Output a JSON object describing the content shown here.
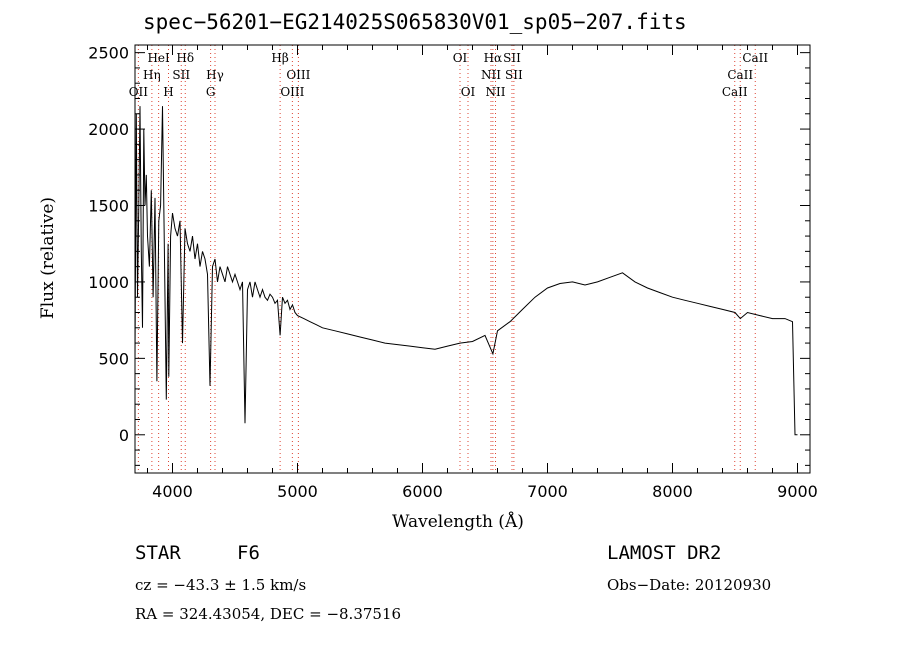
{
  "chart_data": {
    "type": "line",
    "title": "spec−56201−EG214025S065830V01_sp05−207.fits",
    "xlabel": "Wavelength (Å)",
    "ylabel": "Flux (relative)",
    "xlim": [
      3700,
      9100
    ],
    "ylim": [
      -250,
      2550
    ],
    "xticks": [
      4000,
      5000,
      6000,
      7000,
      8000,
      9000
    ],
    "yticks": [
      0,
      500,
      1000,
      1500,
      2000,
      2500
    ],
    "grid": false,
    "series": [
      {
        "x": [
          3700,
          3710,
          3720,
          3730,
          3740,
          3750,
          3760,
          3770,
          3780,
          3790,
          3800,
          3815,
          3830,
          3845,
          3860,
          3875,
          3890,
          3905,
          3920,
          3935,
          3950,
          3965,
          3970,
          3985,
          4000,
          4020,
          4040,
          4060,
          4080,
          4100,
          4120,
          4140,
          4160,
          4180,
          4200,
          4220,
          4240,
          4260,
          4280,
          4300,
          4320,
          4340,
          4360,
          4380,
          4400,
          4420,
          4440,
          4460,
          4480,
          4500,
          4520,
          4540,
          4560,
          4580,
          4600,
          4620,
          4640,
          4660,
          4680,
          4700,
          4720,
          4740,
          4760,
          4780,
          4800,
          4820,
          4840,
          4861,
          4880,
          4900,
          4920,
          4940,
          4960,
          4980,
          5000,
          5050,
          5100,
          5150,
          5200,
          5300,
          5400,
          5500,
          5600,
          5700,
          5800,
          5900,
          6000,
          6100,
          6200,
          6300,
          6400,
          6500,
          6563,
          6600,
          6700,
          6800,
          6900,
          7000,
          7100,
          7200,
          7300,
          7400,
          7500,
          7600,
          7700,
          7800,
          7900,
          8000,
          8100,
          8200,
          8300,
          8400,
          8500,
          8542,
          8600,
          8700,
          8800,
          8900,
          8960,
          8980,
          9000
        ],
        "y": [
          500,
          2100,
          900,
          1500,
          2150,
          1200,
          700,
          2000,
          1500,
          1700,
          1300,
          1100,
          1600,
          900,
          1550,
          350,
          1400,
          1500,
          2150,
          1200,
          230,
          1250,
          380,
          1300,
          1450,
          1350,
          1300,
          1400,
          600,
          1350,
          1250,
          1200,
          1300,
          1150,
          1250,
          1100,
          1200,
          1150,
          1050,
          320,
          1100,
          1150,
          1000,
          1100,
          1050,
          1000,
          1100,
          1050,
          1000,
          1050,
          1000,
          950,
          1000,
          75,
          950,
          1000,
          900,
          1000,
          950,
          900,
          950,
          900,
          880,
          920,
          900,
          860,
          880,
          650,
          900,
          860,
          880,
          820,
          850,
          800,
          780,
          760,
          740,
          720,
          700,
          680,
          660,
          640,
          620,
          600,
          590,
          580,
          570,
          560,
          580,
          600,
          610,
          650,
          530,
          680,
          740,
          820,
          900,
          960,
          990,
          1000,
          980,
          1000,
          1030,
          1060,
          1000,
          960,
          930,
          900,
          880,
          860,
          840,
          820,
          800,
          760,
          800,
          780,
          760,
          760,
          740,
          0,
          0
        ]
      }
    ],
    "line_labels": [
      {
        "text": "OII",
        "x": 3727,
        "row": 3
      },
      {
        "text": "Hη",
        "x": 3835,
        "row": 2
      },
      {
        "text": "HeI",
        "x": 3889,
        "row": 1
      },
      {
        "text": "H",
        "x": 3968,
        "row": 3
      },
      {
        "text": "Hδ",
        "x": 4102,
        "row": 1
      },
      {
        "text": "SII",
        "x": 4070,
        "row": 2
      },
      {
        "text": "Hγ",
        "x": 4340,
        "row": 2
      },
      {
        "text": "G",
        "x": 4305,
        "row": 3
      },
      {
        "text": "Hβ",
        "x": 4861,
        "row": 1
      },
      {
        "text": "OIII",
        "x": 5007,
        "row": 2
      },
      {
        "text": "OIII",
        "x": 4959,
        "row": 3
      },
      {
        "text": "OI",
        "x": 6300,
        "row": 1
      },
      {
        "text": "OI",
        "x": 6364,
        "row": 3
      },
      {
        "text": "Hα",
        "x": 6563,
        "row": 1
      },
      {
        "text": "SII",
        "x": 6716,
        "row": 1
      },
      {
        "text": "NII",
        "x": 6548,
        "row": 2
      },
      {
        "text": "SII",
        "x": 6731,
        "row": 2
      },
      {
        "text": "NII",
        "x": 6584,
        "row": 3
      },
      {
        "text": "CaII",
        "x": 8662,
        "row": 1
      },
      {
        "text": "CaII",
        "x": 8542,
        "row": 2
      },
      {
        "text": "CaII",
        "x": 8498,
        "row": 3
      }
    ],
    "marker_lines": [
      3727,
      3835,
      3889,
      3968,
      4070,
      4102,
      4305,
      4340,
      4861,
      4959,
      5007,
      6300,
      6364,
      6548,
      6563,
      6584,
      6716,
      6731,
      8498,
      8542,
      8662
    ]
  },
  "info": {
    "class_label": "STAR",
    "subclass": "F6",
    "survey": "LAMOST DR2",
    "redshift": "cz = −43.3 ± 1.5 km/s",
    "obs_date": "Obs−Date: 20120930",
    "coords": "RA = 324.43054, DEC =  −8.37516"
  }
}
